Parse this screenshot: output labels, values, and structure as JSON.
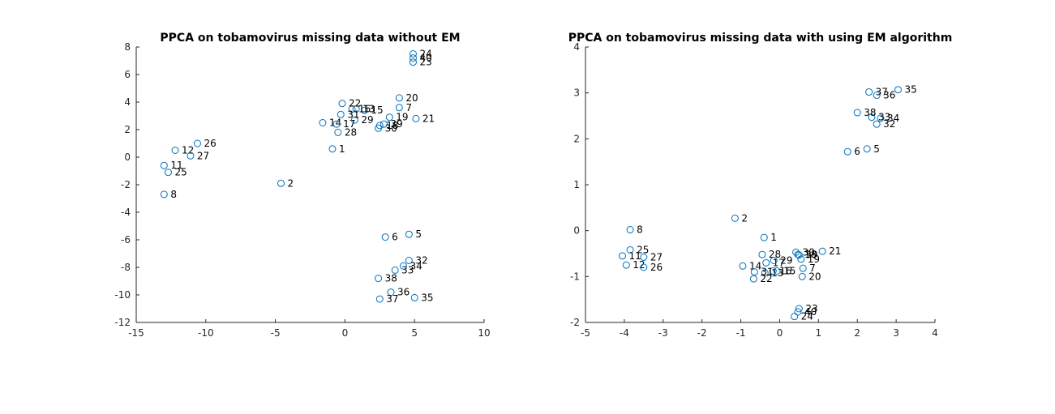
{
  "chart_data": [
    {
      "type": "scatter",
      "title": "PPCA on tobamovirus missing data without EM",
      "xlabel": "",
      "ylabel": "",
      "xlim": [
        -15,
        10
      ],
      "ylim": [
        -12,
        8
      ],
      "xticks": [
        "-15",
        "-10",
        "-5",
        "0",
        "5",
        "10"
      ],
      "yticks": [
        "8",
        "6",
        "4",
        "2",
        "0",
        "-2",
        "-4",
        "-6",
        "-8",
        "-10",
        "-12"
      ],
      "marker_color": "#0072bd",
      "points": [
        {
          "label": "1",
          "x": -0.9,
          "y": 0.6
        },
        {
          "label": "2",
          "x": -4.6,
          "y": -1.9
        },
        {
          "label": "5",
          "x": 4.6,
          "y": -5.6
        },
        {
          "label": "6",
          "x": 2.9,
          "y": -5.8
        },
        {
          "label": "7",
          "x": 3.9,
          "y": 3.6
        },
        {
          "label": "8",
          "x": -13.0,
          "y": -2.7
        },
        {
          "label": "11",
          "x": -13.0,
          "y": -0.6
        },
        {
          "label": "12",
          "x": -12.2,
          "y": 0.5
        },
        {
          "label": "13",
          "x": 0.8,
          "y": 3.5
        },
        {
          "label": "14",
          "x": -1.6,
          "y": 2.5
        },
        {
          "label": "15",
          "x": 1.4,
          "y": 3.4
        },
        {
          "label": "16",
          "x": 0.5,
          "y": 3.5
        },
        {
          "label": "17",
          "x": -0.6,
          "y": 2.4
        },
        {
          "label": "18",
          "x": 2.5,
          "y": 2.3
        },
        {
          "label": "19",
          "x": 3.2,
          "y": 2.9
        },
        {
          "label": "20",
          "x": 3.9,
          "y": 4.3
        },
        {
          "label": "21",
          "x": 5.1,
          "y": 2.8
        },
        {
          "label": "22",
          "x": -0.2,
          "y": 3.9
        },
        {
          "label": "23",
          "x": 4.9,
          "y": 6.9
        },
        {
          "label": "24",
          "x": 4.9,
          "y": 7.5
        },
        {
          "label": "25",
          "x": -12.7,
          "y": -1.1
        },
        {
          "label": "26",
          "x": -10.6,
          "y": 1.0
        },
        {
          "label": "27",
          "x": -11.1,
          "y": 0.1
        },
        {
          "label": "28",
          "x": -0.5,
          "y": 1.8
        },
        {
          "label": "29",
          "x": 0.7,
          "y": 2.7
        },
        {
          "label": "30",
          "x": 2.4,
          "y": 2.1
        },
        {
          "label": "31",
          "x": -0.3,
          "y": 3.1
        },
        {
          "label": "32",
          "x": 4.6,
          "y": -7.5
        },
        {
          "label": "33",
          "x": 3.6,
          "y": -8.2
        },
        {
          "label": "34",
          "x": 4.2,
          "y": -7.9
        },
        {
          "label": "35",
          "x": 5.0,
          "y": -10.2
        },
        {
          "label": "36",
          "x": 3.3,
          "y": -9.8
        },
        {
          "label": "37",
          "x": 2.5,
          "y": -10.3
        },
        {
          "label": "38",
          "x": 2.4,
          "y": -8.8
        },
        {
          "label": "39",
          "x": 2.8,
          "y": 2.4
        },
        {
          "label": "40",
          "x": 4.9,
          "y": 7.2
        }
      ]
    },
    {
      "type": "scatter",
      "title": "PPCA on tobamovirus missing data with using EM algorithm",
      "xlabel": "",
      "ylabel": "",
      "xlim": [
        -5,
        4
      ],
      "ylim": [
        -2,
        4
      ],
      "xticks": [
        "-5",
        "-4",
        "-3",
        "-2",
        "-1",
        "0",
        "1",
        "2",
        "3",
        "4"
      ],
      "yticks": [
        "4",
        "3",
        "2",
        "1",
        "0",
        "-1",
        "-2"
      ],
      "marker_color": "#0072bd",
      "points": [
        {
          "label": "1",
          "x": -0.4,
          "y": -0.15
        },
        {
          "label": "2",
          "x": -1.15,
          "y": 0.27
        },
        {
          "label": "5",
          "x": 2.25,
          "y": 1.78
        },
        {
          "label": "6",
          "x": 1.75,
          "y": 1.72
        },
        {
          "label": "7",
          "x": 0.6,
          "y": -0.82
        },
        {
          "label": "8",
          "x": -3.85,
          "y": 0.02
        },
        {
          "label": "11",
          "x": -4.05,
          "y": -0.55
        },
        {
          "label": "12",
          "x": -3.95,
          "y": -0.75
        },
        {
          "label": "13",
          "x": -0.38,
          "y": -0.92
        },
        {
          "label": "14",
          "x": -0.95,
          "y": -0.77
        },
        {
          "label": "15",
          "x": -0.07,
          "y": -0.88
        },
        {
          "label": "16",
          "x": -0.17,
          "y": -0.88
        },
        {
          "label": "17",
          "x": -0.35,
          "y": -0.7
        },
        {
          "label": "18",
          "x": 0.47,
          "y": -0.52
        },
        {
          "label": "19",
          "x": 0.55,
          "y": -0.62
        },
        {
          "label": "20",
          "x": 0.58,
          "y": -1.0
        },
        {
          "label": "21",
          "x": 1.1,
          "y": -0.45
        },
        {
          "label": "22",
          "x": -0.67,
          "y": -1.05
        },
        {
          "label": "23",
          "x": 0.5,
          "y": -1.7
        },
        {
          "label": "24",
          "x": 0.38,
          "y": -1.87
        },
        {
          "label": "25",
          "x": -3.85,
          "y": -0.42
        },
        {
          "label": "26",
          "x": -3.5,
          "y": -0.8
        },
        {
          "label": "27",
          "x": -3.5,
          "y": -0.58
        },
        {
          "label": "28",
          "x": -0.45,
          "y": -0.52
        },
        {
          "label": "29",
          "x": -0.15,
          "y": -0.65
        },
        {
          "label": "30",
          "x": 0.42,
          "y": -0.47
        },
        {
          "label": "31",
          "x": -0.65,
          "y": -0.9
        },
        {
          "label": "32",
          "x": 2.5,
          "y": 2.32
        },
        {
          "label": "33",
          "x": 2.37,
          "y": 2.47
        },
        {
          "label": "34",
          "x": 2.6,
          "y": 2.45
        },
        {
          "label": "35",
          "x": 3.05,
          "y": 3.07
        },
        {
          "label": "36",
          "x": 2.5,
          "y": 2.95
        },
        {
          "label": "37",
          "x": 2.3,
          "y": 3.02
        },
        {
          "label": "38",
          "x": 2.0,
          "y": 2.57
        },
        {
          "label": "39",
          "x": 0.5,
          "y": -0.53
        },
        {
          "label": "40",
          "x": 0.47,
          "y": -1.77
        }
      ]
    }
  ]
}
